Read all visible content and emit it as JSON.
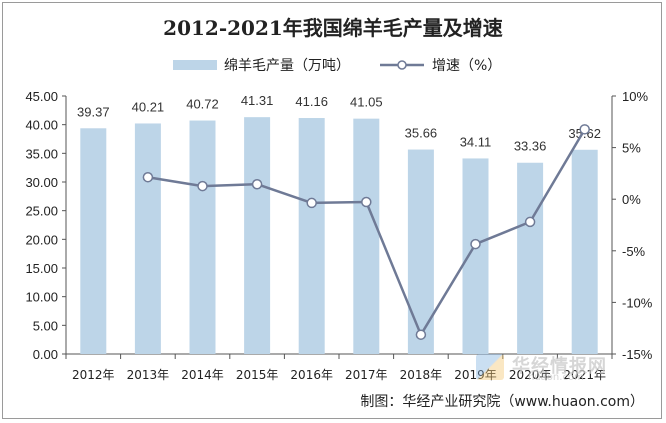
{
  "chart_data": {
    "type": "bar",
    "title": "2012-2021年我国绵羊毛产量及增速",
    "categories": [
      "2012年",
      "2013年",
      "2014年",
      "2015年",
      "2016年",
      "2017年",
      "2018年",
      "2019年",
      "2020年",
      "2021年"
    ],
    "series": [
      {
        "name": "绵羊毛产量（万吨）",
        "type": "bar",
        "axis": "left",
        "color": "#bdd5e8",
        "values": [
          39.37,
          40.21,
          40.72,
          41.31,
          41.16,
          41.05,
          35.66,
          34.11,
          33.36,
          35.62
        ],
        "labels": [
          "39.37",
          "40.21",
          "40.72",
          "41.31",
          "41.16",
          "41.05",
          "35.66",
          "34.11",
          "33.36",
          "35.62"
        ]
      },
      {
        "name": "增速（%）",
        "type": "line",
        "axis": "right",
        "color": "#6f7a96",
        "values": [
          null,
          2.13,
          1.27,
          1.45,
          -0.36,
          -0.27,
          -13.13,
          -4.35,
          -2.2,
          6.77
        ]
      }
    ],
    "y_left": {
      "min": 0,
      "max": 45,
      "step": 5,
      "ticks": [
        "0.00",
        "5.00",
        "10.00",
        "15.00",
        "20.00",
        "25.00",
        "30.00",
        "35.00",
        "40.00",
        "45.00"
      ]
    },
    "y_right": {
      "min": -15,
      "max": 10,
      "step": 5,
      "ticks": [
        "-15%",
        "-10%",
        "-5%",
        "0%",
        "5%",
        "10%"
      ]
    },
    "grid": false,
    "legend_position": "top-center"
  },
  "source": "制图：华经产业研究院（www.huaon.com）",
  "watermark": {
    "main": "华经情报网",
    "sub": "huaon.com"
  }
}
